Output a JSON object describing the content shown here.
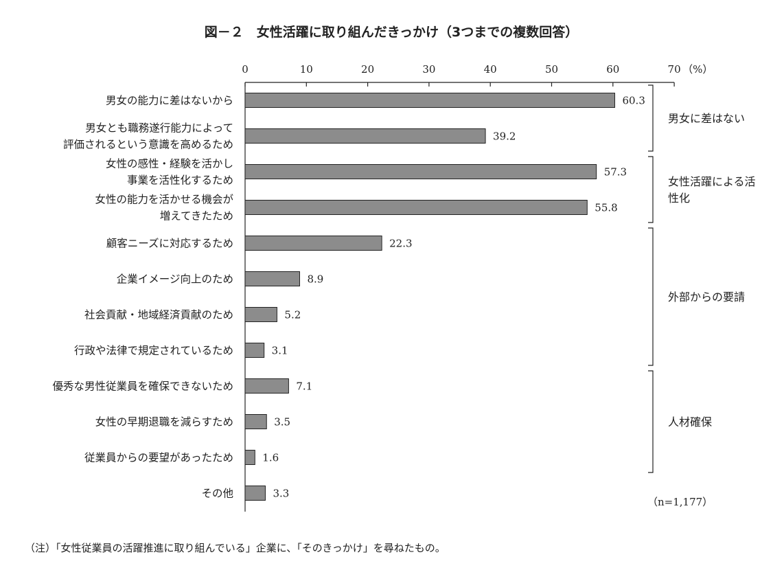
{
  "chart_data": {
    "type": "bar",
    "orientation": "horizontal",
    "title": "図－２　女性活躍に取り組んだきっかけ（3つまでの複数回答）",
    "xlim": [
      0,
      70
    ],
    "xticks": [
      "0",
      "10",
      "20",
      "30",
      "40",
      "50",
      "60",
      "70"
    ],
    "unit": "（%）",
    "categories": [
      [
        "男女の能力に差はないから"
      ],
      [
        "男女とも職務遂行能力によって",
        "評価されるという意識を高めるため"
      ],
      [
        "女性の感性・経験を活かし",
        "事業を活性化するため"
      ],
      [
        "女性の能力を活かせる機会が",
        "増えてきたため"
      ],
      [
        "顧客ニーズに対応するため"
      ],
      [
        "企業イメージ向上のため"
      ],
      [
        "社会貢献・地域経済貢献のため"
      ],
      [
        "行政や法律で規定されているため"
      ],
      [
        "優秀な男性従業員を確保できないため"
      ],
      [
        "女性の早期退職を減らすため"
      ],
      [
        "従業員からの要望があったため"
      ],
      [
        "その他"
      ]
    ],
    "values": [
      60.3,
      39.2,
      57.3,
      55.8,
      22.3,
      8.9,
      5.2,
      3.1,
      7.1,
      3.5,
      1.6,
      3.3
    ],
    "value_labels": [
      "60.3",
      "39.2",
      "57.3",
      "55.8",
      "22.3",
      "8.9",
      "5.2",
      "3.1",
      "7.1",
      "3.5",
      "1.6",
      "3.3"
    ],
    "groups": [
      {
        "label": [
          "男女に差はない"
        ],
        "from": 0,
        "to": 1
      },
      {
        "label": [
          "女性活躍による活",
          "性化"
        ],
        "from": 2,
        "to": 3
      },
      {
        "label": [
          "外部からの要請"
        ],
        "from": 4,
        "to": 7
      },
      {
        "label": [
          "人材確保"
        ],
        "from": 8,
        "to": 10
      }
    ],
    "sample_size": "（n=1,177）",
    "note": "（注）「女性従業員の活躍推進に取り組んでいる」企業に、「そのきっかけ」を尋ねたもの。",
    "bar_color": "#8c8c8c",
    "grid": false
  }
}
